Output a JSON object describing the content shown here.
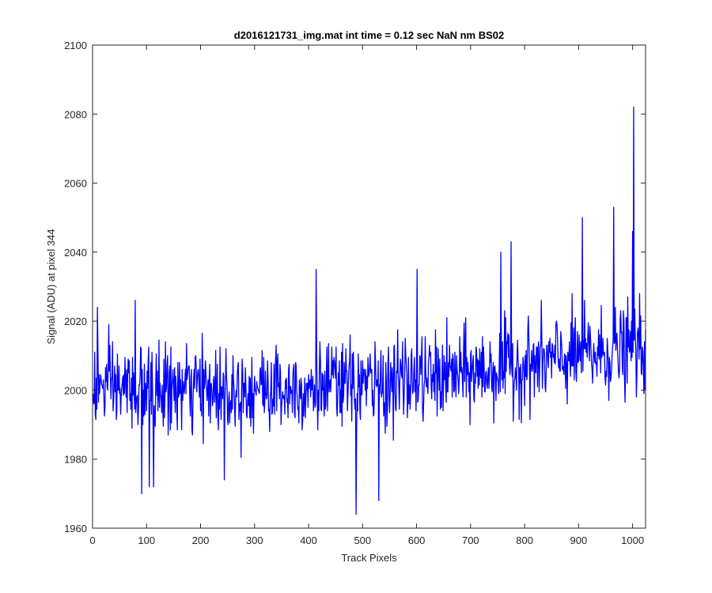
{
  "chart_data": {
    "type": "line",
    "title": "d2016121731_img.mat int time = 0.12 sec  NaN nm BS02",
    "xlabel": "Track Pixels",
    "ylabel": "Signal (ADU) at pixel 344",
    "xlim": [
      0,
      1024
    ],
    "ylim": [
      1960,
      2100
    ],
    "xticks": [
      0,
      100,
      200,
      300,
      400,
      500,
      600,
      700,
      800,
      900,
      1000
    ],
    "yticks": [
      1960,
      1980,
      2000,
      2020,
      2040,
      2060,
      2080,
      2100
    ],
    "grid": false,
    "legend": "none",
    "series": [
      {
        "color": "#0000ff",
        "n_points": 1024,
        "baseline_knots": [
          [
            0,
            2001
          ],
          [
            100,
            2000
          ],
          [
            300,
            2000.5
          ],
          [
            500,
            2001.5
          ],
          [
            600,
            2003
          ],
          [
            700,
            2005
          ],
          [
            800,
            2007
          ],
          [
            900,
            2010
          ],
          [
            1024,
            2012
          ]
        ],
        "noise_sd": 6.2,
        "peaks": [
          [
            8,
            2024
          ],
          [
            78,
            2026
          ],
          [
            413,
            2035
          ],
          [
            600,
            2035
          ],
          [
            755,
            2040
          ],
          [
            774,
            2043
          ],
          [
            906,
            2050
          ],
          [
            964,
            2053
          ],
          [
            999,
            2046
          ],
          [
            1001,
            2082
          ]
        ],
        "dips": [
          [
            90,
            1970
          ],
          [
            104,
            1972
          ],
          [
            112,
            1972
          ],
          [
            243,
            1974
          ],
          [
            487,
            1964
          ],
          [
            529,
            1968
          ]
        ]
      }
    ]
  }
}
